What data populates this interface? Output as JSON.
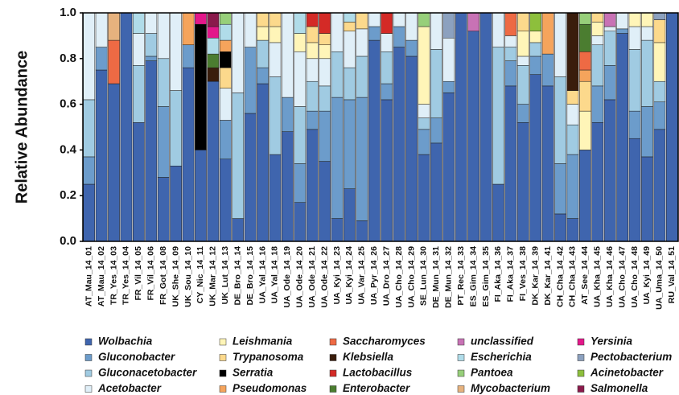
{
  "chart_data": {
    "type": "stacked_bar",
    "y_label": "Relative Abundance",
    "ylim": [
      0,
      1
    ],
    "yticks": [
      {
        "value": 0,
        "label": "0.0"
      },
      0.2,
      0.4,
      0.6,
      0.8,
      {
        "value": 1,
        "label": "1.0"
      }
    ],
    "categories": [
      "AT_Mau_14_01",
      "AT_Mau_14_02",
      "TR_Yes_14_03",
      "TR_Yes_14_04",
      "FR_Vil_14_05",
      "FR_Vil_14_06",
      "FR_Got_14_08",
      "UK_She_14_09",
      "UK_Sou_14_10",
      "CY_Nic_14_11",
      "UK_Mar_14_12",
      "UK_Lut_14_13",
      "DE_Bro_14_14",
      "DE_Bro_14_15",
      "UA_Yal_14_16",
      "UA_Yal_14_18",
      "UA_Ode_14_19",
      "UA_Ode_14_20",
      "UA_Ode_14_21",
      "UA_Ode_14_22",
      "UA_Kyi_14_23",
      "UA_Kyi_14_24",
      "UA_Var_14_25",
      "UA_Pyr_14_26",
      "UA_Dro_14_27",
      "UA_Cho_14_28",
      "UA_Cho_14_29",
      "SE_Lun_14_30",
      "DE_Mun_14_31",
      "DE_Mun_14_32",
      "PT_Rec_14_33",
      "ES_Gim_14_34",
      "ES_Gim_14_35",
      "FI_Aka_14_36",
      "FI_Aka_14_37",
      "FI_Ves_14_38",
      "DK_Kar_14_39",
      "DK_Kar_14_41",
      "CH_Cha_14_42",
      "CH_Cha_14_43",
      "AT_See_14_44",
      "UA_Kha_14_45",
      "UA_Kha_14_46",
      "UA_Cho_14_47",
      "UA_Cho_14_48",
      "UA_Kyi_14_49",
      "UA_Uma_14_50",
      "RU_Val_14_51"
    ],
    "series": [
      {
        "name": "Wolbachia",
        "color": "#3f65ae",
        "values": [
          0.25,
          0.75,
          0.69,
          1.0,
          0.52,
          0.79,
          0.28,
          0.33,
          0.76,
          0.4,
          0.7,
          0.36,
          0.1,
          0.56,
          0.69,
          0.38,
          0.48,
          0.17,
          0.49,
          0.35,
          0.1,
          0.23,
          0.09,
          0.88,
          0.62,
          0.85,
          0.81,
          0.38,
          0.43,
          0.65,
          1.0,
          0.92,
          1.0,
          0.25,
          0.68,
          0.52,
          0.73,
          0.68,
          0.12,
          0.1,
          0.4,
          0.52,
          0.62,
          0.91,
          0.45,
          0.37,
          0.49,
          1.0
        ]
      },
      {
        "name": "Gluconobacter",
        "color": "#6c9ccb",
        "values": [
          0.12,
          0.1,
          0,
          0,
          0,
          0.02,
          0.31,
          0,
          0.1,
          0,
          0,
          0.17,
          0,
          0.29,
          0.07,
          0,
          0.15,
          0.17,
          0.08,
          0.22,
          0.53,
          0.39,
          0.54,
          0.06,
          0.07,
          0.09,
          0.07,
          0.11,
          0.11,
          0.05,
          0,
          0,
          0,
          0,
          0.11,
          0.08,
          0.08,
          0.14,
          0.22,
          0.28,
          0,
          0.16,
          0.15,
          0.02,
          0.12,
          0.22,
          0.12,
          0
        ]
      },
      {
        "name": "Gluconacetobacter",
        "color": "#a0cbe2",
        "values": [
          0.25,
          0,
          0,
          0,
          0.25,
          0.1,
          0.21,
          0.33,
          0,
          0,
          0,
          0,
          0.55,
          0,
          0.12,
          0.34,
          0,
          0.25,
          0.13,
          0.11,
          0.2,
          0.14,
          0.18,
          0,
          0.14,
          0,
          0,
          0.05,
          0.3,
          0,
          0,
          0,
          0,
          0.6,
          0.06,
          0.17,
          0.06,
          0,
          0.38,
          0.13,
          0,
          0.18,
          0.15,
          0,
          0.27,
          0.29,
          0.09,
          0
        ]
      },
      {
        "name": "Acetobacter",
        "color": "#e0eff8",
        "values": [
          0.38,
          0.15,
          0,
          0,
          0.14,
          0.09,
          0.2,
          0.34,
          0,
          0,
          0,
          0.14,
          0.35,
          0.15,
          0,
          0.15,
          0.37,
          0.24,
          0.1,
          0.12,
          0.17,
          0.16,
          0.12,
          0.06,
          0.08,
          0.06,
          0.12,
          0.06,
          0.16,
          0.19,
          0,
          0,
          0,
          0.15,
          0.05,
          0.04,
          0,
          0,
          0.28,
          0.09,
          0,
          0.04,
          0.02,
          0.07,
          0.1,
          0.06,
          0,
          0
        ]
      },
      {
        "name": "Leishmania",
        "color": "#fff5b8",
        "values": [
          0,
          0,
          0,
          0,
          0,
          0,
          0,
          0,
          0,
          0,
          0,
          0,
          0,
          0,
          0.06,
          0.07,
          0,
          0.08,
          0.07,
          0.06,
          0,
          0,
          0,
          0,
          0,
          0,
          0,
          0.34,
          0,
          0,
          0,
          0,
          0,
          0,
          0,
          0.11,
          0.05,
          0,
          0,
          0,
          0.17,
          0.06,
          0,
          0,
          0.06,
          0.06,
          0.17,
          0
        ]
      },
      {
        "name": "Trypanosoma",
        "color": "#fcd98c",
        "values": [
          0,
          0,
          0,
          0,
          0,
          0,
          0,
          0,
          0,
          0,
          0,
          0.09,
          0,
          0,
          0.06,
          0.06,
          0,
          0,
          0.07,
          0.05,
          0,
          0.04,
          0.07,
          0,
          0,
          0,
          0,
          0,
          0,
          0,
          0,
          0,
          0,
          0,
          0,
          0.08,
          0,
          0,
          0,
          0.06,
          0.13,
          0.04,
          0,
          0,
          0,
          0,
          0.1,
          0
        ]
      },
      {
        "name": "Serratia",
        "color": "#000000",
        "values": [
          0,
          0,
          0,
          0,
          0,
          0,
          0,
          0,
          0,
          0.55,
          0,
          0.07,
          0,
          0,
          0,
          0,
          0,
          0,
          0,
          0,
          0,
          0,
          0,
          0,
          0,
          0,
          0,
          0,
          0,
          0,
          0,
          0,
          0,
          0,
          0,
          0,
          0,
          0,
          0,
          0,
          0,
          0,
          0,
          0,
          0,
          0,
          0,
          0
        ]
      },
      {
        "name": "Pseudomonas",
        "color": "#f5a45c",
        "values": [
          0,
          0,
          0,
          0,
          0,
          0,
          0,
          0,
          0.14,
          0,
          0,
          0.05,
          0,
          0,
          0,
          0,
          0,
          0,
          0,
          0,
          0,
          0,
          0,
          0,
          0,
          0,
          0,
          0,
          0,
          0,
          0,
          0,
          0,
          0,
          0,
          0,
          0,
          0.18,
          0,
          0,
          0.05,
          0,
          0,
          0,
          0,
          0,
          0,
          0
        ]
      },
      {
        "name": "Saccharomyces",
        "color": "#ee6a44",
        "values": [
          0,
          0,
          0.19,
          0,
          0,
          0,
          0,
          0,
          0,
          0,
          0,
          0,
          0,
          0,
          0,
          0,
          0,
          0,
          0,
          0,
          0,
          0,
          0,
          0,
          0,
          0,
          0,
          0,
          0,
          0,
          0,
          0,
          0,
          0,
          0.1,
          0,
          0,
          0,
          0,
          0,
          0.08,
          0,
          0,
          0,
          0,
          0,
          0,
          0
        ]
      },
      {
        "name": "Klebsiella",
        "color": "#3a1d0c",
        "values": [
          0,
          0,
          0,
          0,
          0,
          0,
          0,
          0,
          0,
          0,
          0.06,
          0,
          0,
          0,
          0,
          0,
          0,
          0,
          0,
          0,
          0,
          0,
          0,
          0,
          0,
          0,
          0,
          0,
          0,
          0,
          0,
          0,
          0,
          0,
          0,
          0,
          0,
          0,
          0,
          0.34,
          0,
          0,
          0,
          0,
          0,
          0,
          0,
          0
        ]
      },
      {
        "name": "Lactobacillus",
        "color": "#d42a26",
        "values": [
          0,
          0,
          0,
          0,
          0,
          0,
          0,
          0,
          0,
          0,
          0,
          0,
          0,
          0,
          0,
          0,
          0,
          0,
          0.06,
          0.09,
          0,
          0,
          0,
          0,
          0.09,
          0,
          0,
          0,
          0,
          0,
          0,
          0,
          0,
          0,
          0,
          0,
          0,
          0,
          0,
          0,
          0,
          0,
          0,
          0,
          0,
          0,
          0,
          0
        ]
      },
      {
        "name": "Enterobacter",
        "color": "#4b7d30",
        "values": [
          0,
          0,
          0,
          0,
          0,
          0,
          0,
          0,
          0,
          0,
          0.06,
          0,
          0,
          0,
          0,
          0,
          0,
          0,
          0,
          0,
          0,
          0,
          0,
          0,
          0,
          0,
          0,
          0,
          0,
          0,
          0,
          0,
          0,
          0,
          0,
          0,
          0,
          0,
          0,
          0,
          0.12,
          0,
          0,
          0,
          0,
          0,
          0,
          0
        ]
      },
      {
        "name": "unclassified",
        "color": "#c872b5",
        "values": [
          0,
          0,
          0,
          0,
          0,
          0,
          0,
          0,
          0,
          0,
          0,
          0,
          0,
          0,
          0,
          0,
          0,
          0,
          0,
          0,
          0,
          0,
          0,
          0,
          0,
          0,
          0,
          0,
          0,
          0,
          0,
          0.08,
          0,
          0,
          0,
          0,
          0,
          0,
          0,
          0,
          0,
          0,
          0.06,
          0,
          0,
          0,
          0,
          0
        ]
      },
      {
        "name": "Escherichia",
        "color": "#b0dce9",
        "values": [
          0,
          0,
          0,
          0,
          0.09,
          0,
          0,
          0,
          0,
          0,
          0.07,
          0.07,
          0,
          0,
          0,
          0,
          0,
          0.09,
          0,
          0,
          0,
          0.04,
          0,
          0,
          0,
          0,
          0,
          0,
          0,
          0,
          0,
          0,
          0,
          0,
          0,
          0,
          0,
          0,
          0,
          0,
          0,
          0,
          0,
          0,
          0,
          0,
          0,
          0
        ]
      },
      {
        "name": "Pantoea",
        "color": "#97cf7a",
        "values": [
          0,
          0,
          0,
          0,
          0,
          0,
          0,
          0,
          0,
          0,
          0,
          0.05,
          0,
          0,
          0,
          0,
          0,
          0,
          0,
          0,
          0,
          0,
          0,
          0,
          0,
          0,
          0,
          0.06,
          0,
          0,
          0,
          0,
          0,
          0,
          0,
          0,
          0,
          0,
          0,
          0,
          0.05,
          0,
          0,
          0,
          0,
          0,
          0,
          0
        ]
      },
      {
        "name": "Mycobacterium",
        "color": "#e6b27e",
        "values": [
          0,
          0,
          0.12,
          0,
          0,
          0,
          0,
          0,
          0,
          0,
          0,
          0,
          0,
          0,
          0,
          0,
          0,
          0,
          0,
          0,
          0,
          0,
          0,
          0,
          0,
          0,
          0,
          0,
          0,
          0,
          0,
          0,
          0,
          0,
          0,
          0,
          0,
          0,
          0,
          0,
          0,
          0,
          0,
          0,
          0,
          0,
          0,
          0
        ]
      },
      {
        "name": "Yersinia",
        "color": "#e3178a",
        "values": [
          0,
          0,
          0,
          0,
          0,
          0,
          0,
          0,
          0,
          0.05,
          0.05,
          0,
          0,
          0,
          0,
          0,
          0,
          0,
          0,
          0,
          0,
          0,
          0,
          0,
          0,
          0,
          0,
          0,
          0,
          0,
          0,
          0,
          0,
          0,
          0,
          0,
          0,
          0,
          0,
          0,
          0,
          0,
          0,
          0,
          0,
          0,
          0,
          0
        ]
      },
      {
        "name": "Pectobacterium",
        "color": "#8ca1bf",
        "values": [
          0,
          0,
          0,
          0,
          0,
          0,
          0,
          0,
          0,
          0,
          0,
          0,
          0,
          0,
          0,
          0,
          0,
          0,
          0,
          0,
          0,
          0,
          0,
          0,
          0,
          0,
          0,
          0,
          0,
          0.11,
          0,
          0,
          0,
          0,
          0,
          0,
          0,
          0,
          0,
          0,
          0,
          0,
          0,
          0,
          0,
          0,
          0.03,
          0
        ]
      },
      {
        "name": "Acinetobacter",
        "color": "#8dbf3c",
        "values": [
          0,
          0,
          0,
          0,
          0,
          0,
          0,
          0,
          0,
          0,
          0,
          0,
          0,
          0,
          0,
          0,
          0,
          0,
          0,
          0,
          0,
          0,
          0,
          0,
          0,
          0,
          0,
          0,
          0,
          0,
          0,
          0,
          0,
          0,
          0,
          0,
          0.08,
          0,
          0,
          0,
          0,
          0,
          0,
          0,
          0,
          0,
          0,
          0
        ]
      },
      {
        "name": "Salmonella",
        "color": "#8a1a4b",
        "values": [
          0,
          0,
          0,
          0,
          0,
          0,
          0,
          0,
          0,
          0,
          0.06,
          0,
          0,
          0,
          0,
          0,
          0,
          0,
          0,
          0,
          0,
          0,
          0,
          0,
          0,
          0,
          0,
          0,
          0,
          0,
          0,
          0,
          0,
          0,
          0,
          0,
          0,
          0,
          0,
          0,
          0,
          0,
          0,
          0,
          0,
          0,
          0,
          0
        ]
      }
    ]
  }
}
